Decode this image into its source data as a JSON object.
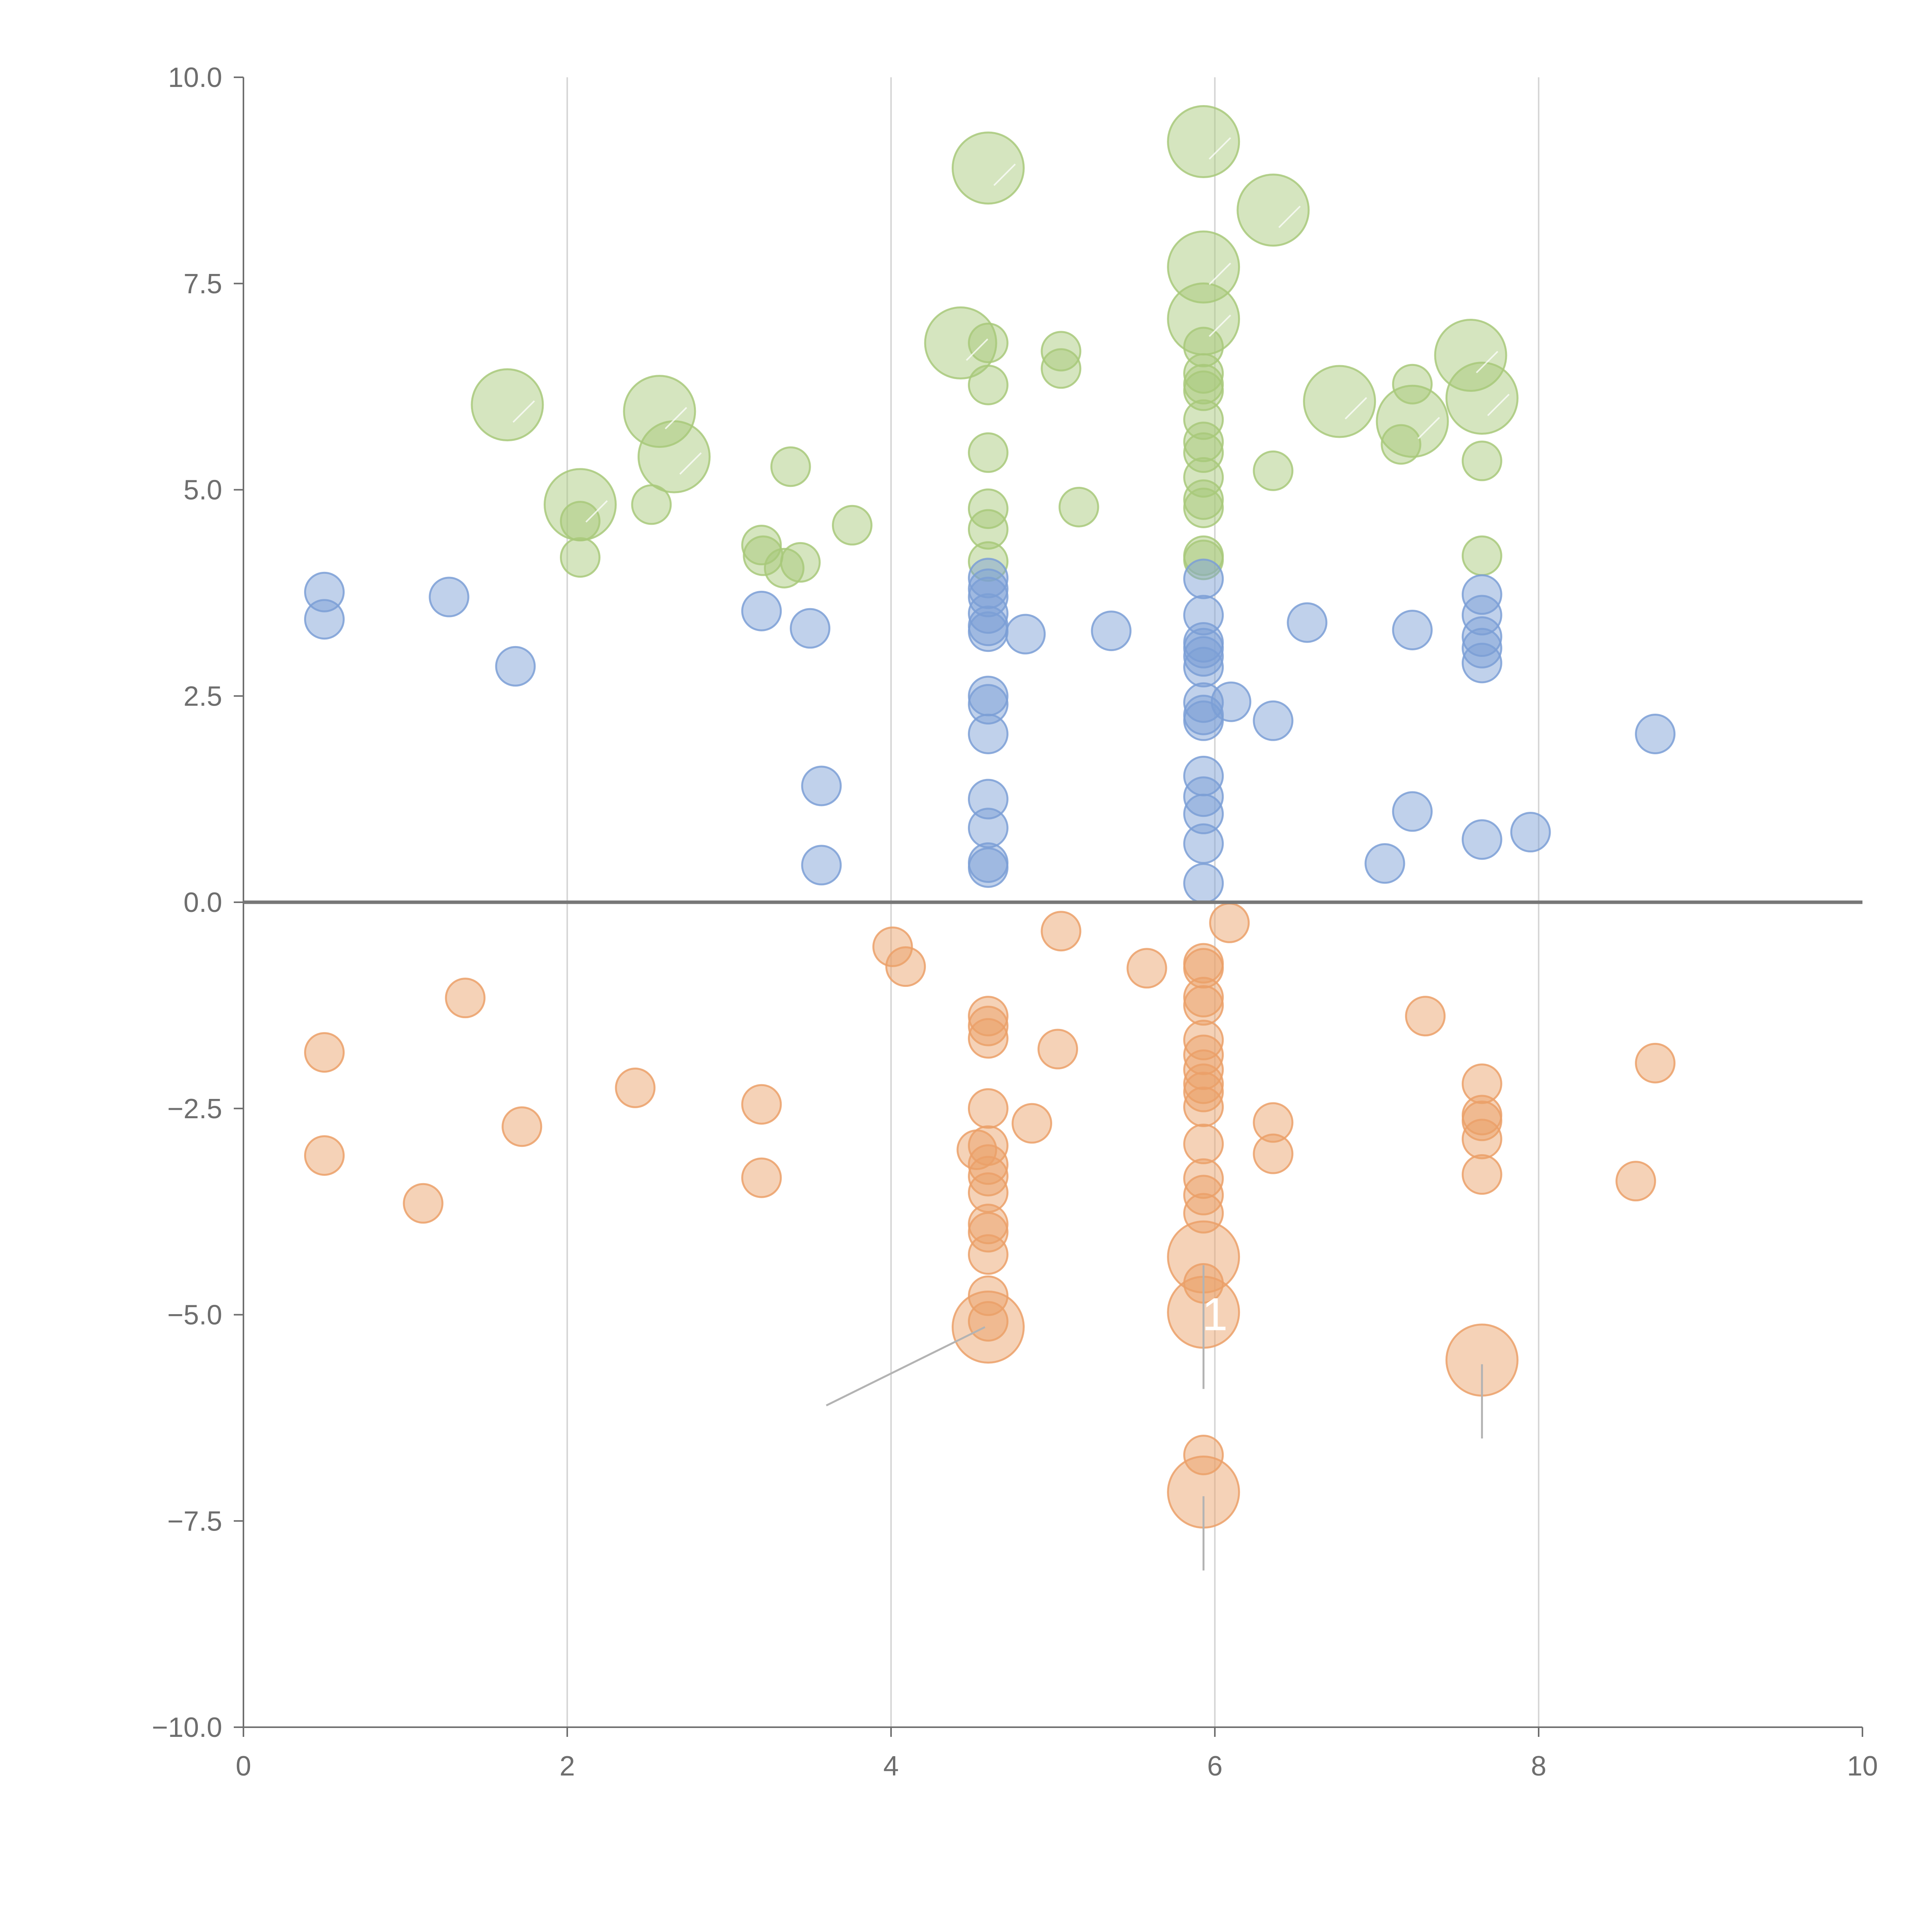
{
  "chart_data": {
    "type": "scatter",
    "variant": "bubble",
    "title": "",
    "xlabel": "",
    "ylabel": "",
    "xlim": [
      0,
      10
    ],
    "ylim": [
      -10,
      10
    ],
    "x_ticks": [
      "0",
      "2",
      "4",
      "6",
      "8",
      "10"
    ],
    "y_ticks": [
      "10.0",
      "7.5",
      "5.0",
      "2.5",
      "0.0",
      "−2.5",
      "−5.0",
      "−7.5",
      "−10.0"
    ],
    "x_tick_values": [
      0,
      2,
      4,
      6,
      8,
      10
    ],
    "y_tick_values": [
      10,
      7.5,
      5,
      2.5,
      0,
      -2.5,
      -5,
      -7.5,
      -10
    ],
    "vertical_gridlines_at": [
      2,
      4,
      6,
      8
    ],
    "zero_line": 0,
    "colors": {
      "green": "#a8c97a",
      "blue": "#7b9fd6",
      "orange": "#eba069",
      "axis": "#6e6e6e",
      "grid": "#d6d6d6"
    },
    "series": [
      {
        "name": "green",
        "color": "#a8c97a",
        "points": [
          [
            4.6,
            8.9,
            2
          ],
          [
            5.93,
            9.22,
            2
          ],
          [
            6.36,
            8.39,
            2
          ],
          [
            5.93,
            7.7,
            2
          ],
          [
            5.93,
            7.07,
            2
          ],
          [
            4.43,
            6.78,
            2
          ],
          [
            1.63,
            6.03,
            2
          ],
          [
            2.57,
            5.95,
            2
          ],
          [
            2.66,
            5.4,
            2
          ],
          [
            2.08,
            4.82,
            2
          ],
          [
            6.77,
            6.07,
            2
          ],
          [
            7.22,
            5.83,
            2
          ],
          [
            7.58,
            6.63,
            2
          ],
          [
            7.65,
            6.11,
            2
          ],
          [
            4.6,
            6.78,
            1
          ],
          [
            4.6,
            6.27,
            1
          ],
          [
            4.6,
            5.45,
            1
          ],
          [
            4.6,
            4.77,
            1
          ],
          [
            4.6,
            4.52,
            1
          ],
          [
            4.6,
            4.13,
            1
          ],
          [
            5.05,
            6.68,
            1
          ],
          [
            5.05,
            6.47,
            1
          ],
          [
            5.16,
            4.79,
            1
          ],
          [
            3.38,
            5.28,
            1
          ],
          [
            3.2,
            4.33,
            1
          ],
          [
            3.21,
            4.2,
            1
          ],
          [
            3.34,
            4.05,
            1
          ],
          [
            3.44,
            4.12,
            1
          ],
          [
            3.76,
            4.57,
            1
          ],
          [
            2.08,
            4.62,
            1
          ],
          [
            2.08,
            4.18,
            1
          ],
          [
            2.52,
            4.82,
            1
          ],
          [
            5.93,
            6.73,
            1
          ],
          [
            5.93,
            6.41,
            1
          ],
          [
            5.93,
            6.28,
            1
          ],
          [
            5.93,
            6.2,
            1
          ],
          [
            5.93,
            5.85,
            1
          ],
          [
            5.93,
            5.58,
            1
          ],
          [
            5.93,
            5.45,
            1
          ],
          [
            5.93,
            5.15,
            1
          ],
          [
            5.93,
            4.88,
            1
          ],
          [
            5.93,
            4.78,
            1
          ],
          [
            5.93,
            4.2,
            1
          ],
          [
            5.93,
            4.15,
            1
          ],
          [
            6.36,
            5.23,
            1
          ],
          [
            7.22,
            6.28,
            1
          ],
          [
            7.15,
            5.55,
            1
          ],
          [
            7.65,
            5.35,
            1
          ],
          [
            7.65,
            4.2,
            1
          ]
        ]
      },
      {
        "name": "blue",
        "color": "#7b9fd6",
        "points": [
          [
            0.5,
            3.76,
            1
          ],
          [
            0.5,
            3.43,
            1
          ],
          [
            1.27,
            3.7,
            1
          ],
          [
            1.68,
            2.86,
            1
          ],
          [
            3.2,
            3.53,
            1
          ],
          [
            3.5,
            3.32,
            1
          ],
          [
            3.57,
            1.41,
            1
          ],
          [
            3.57,
            0.45,
            1
          ],
          [
            4.6,
            3.93,
            1
          ],
          [
            4.6,
            3.8,
            1
          ],
          [
            4.6,
            3.7,
            1
          ],
          [
            4.6,
            3.5,
            1
          ],
          [
            4.6,
            3.35,
            1
          ],
          [
            4.6,
            3.28,
            1
          ],
          [
            4.6,
            2.5,
            1
          ],
          [
            4.6,
            2.4,
            1
          ],
          [
            4.6,
            2.04,
            1
          ],
          [
            4.6,
            1.25,
            1
          ],
          [
            4.6,
            0.9,
            1
          ],
          [
            4.6,
            0.48,
            1
          ],
          [
            4.6,
            0.42,
            1
          ],
          [
            4.83,
            3.25,
            1
          ],
          [
            5.36,
            3.29,
            1
          ],
          [
            5.93,
            3.92,
            1
          ],
          [
            5.93,
            3.48,
            1
          ],
          [
            5.93,
            3.15,
            1
          ],
          [
            5.93,
            3.08,
            1
          ],
          [
            5.93,
            2.98,
            1
          ],
          [
            5.93,
            2.85,
            1
          ],
          [
            5.93,
            2.42,
            1
          ],
          [
            5.93,
            2.27,
            1
          ],
          [
            5.93,
            2.2,
            1
          ],
          [
            5.93,
            1.53,
            1
          ],
          [
            5.93,
            1.28,
            1
          ],
          [
            5.93,
            1.07,
            1
          ],
          [
            5.93,
            0.71,
            1
          ],
          [
            5.93,
            0.23,
            1
          ],
          [
            6.1,
            2.43,
            1
          ],
          [
            6.36,
            2.2,
            1
          ],
          [
            6.57,
            3.39,
            1
          ],
          [
            7.05,
            0.47,
            1
          ],
          [
            7.22,
            3.3,
            1
          ],
          [
            7.22,
            1.1,
            1
          ],
          [
            7.65,
            3.73,
            1
          ],
          [
            7.65,
            3.48,
            1
          ],
          [
            7.65,
            3.22,
            1
          ],
          [
            7.65,
            3.08,
            1
          ],
          [
            7.65,
            2.9,
            1
          ],
          [
            7.65,
            0.76,
            1
          ],
          [
            7.95,
            0.85,
            1
          ],
          [
            8.72,
            2.04,
            1
          ]
        ]
      },
      {
        "name": "orange",
        "color": "#eba069",
        "points": [
          [
            0.5,
            -1.82,
            1
          ],
          [
            0.5,
            -3.07,
            1
          ],
          [
            1.11,
            -3.65,
            1
          ],
          [
            1.37,
            -1.16,
            1
          ],
          [
            1.72,
            -2.72,
            1
          ],
          [
            2.42,
            -2.25,
            1
          ],
          [
            3.2,
            -2.45,
            1
          ],
          [
            3.2,
            -3.34,
            1
          ],
          [
            4.01,
            -0.54,
            1
          ],
          [
            4.09,
            -0.78,
            1
          ],
          [
            4.6,
            -1.38,
            1
          ],
          [
            4.6,
            -1.5,
            1
          ],
          [
            4.6,
            -1.65,
            1
          ],
          [
            4.6,
            -2.5,
            1
          ],
          [
            4.53,
            -3.0,
            1
          ],
          [
            4.6,
            -2.95,
            1
          ],
          [
            4.6,
            -3.18,
            1
          ],
          [
            4.6,
            -3.32,
            1
          ],
          [
            4.6,
            -3.52,
            1
          ],
          [
            4.6,
            -3.9,
            1
          ],
          [
            4.6,
            -4.0,
            1
          ],
          [
            4.6,
            -4.27,
            1
          ],
          [
            4.6,
            -4.77,
            1
          ],
          [
            4.6,
            -5.08,
            1
          ],
          [
            4.6,
            -5.15,
            2
          ],
          [
            4.87,
            -2.68,
            1
          ],
          [
            5.03,
            -1.78,
            1
          ],
          [
            5.05,
            -0.35,
            1
          ],
          [
            5.58,
            -0.8,
            1
          ],
          [
            5.93,
            -0.74,
            1
          ],
          [
            5.93,
            -0.8,
            1
          ],
          [
            5.93,
            -1.15,
            1
          ],
          [
            5.93,
            -1.25,
            1
          ],
          [
            5.93,
            -1.67,
            1
          ],
          [
            5.93,
            -1.85,
            1
          ],
          [
            5.93,
            -2.03,
            1
          ],
          [
            5.93,
            -2.2,
            1
          ],
          [
            5.93,
            -2.3,
            1
          ],
          [
            5.93,
            -2.48,
            1
          ],
          [
            5.93,
            -2.93,
            1
          ],
          [
            5.93,
            -3.35,
            1
          ],
          [
            5.93,
            -3.55,
            1
          ],
          [
            5.93,
            -3.77,
            1
          ],
          [
            5.93,
            -4.3,
            2
          ],
          [
            5.93,
            -4.62,
            1
          ],
          [
            5.93,
            -4.97,
            2
          ],
          [
            5.93,
            -6.7,
            1
          ],
          [
            5.93,
            -7.15,
            2
          ],
          [
            6.09,
            -0.25,
            1
          ],
          [
            6.36,
            -2.67,
            1
          ],
          [
            6.36,
            -3.05,
            1
          ],
          [
            7.3,
            -1.38,
            1
          ],
          [
            7.65,
            -2.2,
            1
          ],
          [
            7.65,
            -2.58,
            1
          ],
          [
            7.65,
            -2.65,
            1
          ],
          [
            7.65,
            -2.87,
            1
          ],
          [
            7.65,
            -3.3,
            1
          ],
          [
            7.65,
            -5.55,
            2
          ],
          [
            8.6,
            -3.38,
            1
          ],
          [
            8.72,
            -1.95,
            1
          ]
        ]
      }
    ],
    "leader_lines": [
      [
        [
          4.58,
          -5.15
        ],
        [
          3.6,
          -6.1
        ]
      ],
      [
        [
          5.93,
          -4.4
        ],
        [
          5.93,
          -5.9
        ]
      ],
      [
        [
          7.65,
          -5.6
        ],
        [
          7.65,
          -6.5
        ]
      ],
      [
        [
          5.93,
          -7.2
        ],
        [
          5.93,
          -8.1
        ]
      ]
    ],
    "text_annotations": [
      {
        "label": "1",
        "x": 6.0,
        "y": -5.0
      }
    ]
  }
}
